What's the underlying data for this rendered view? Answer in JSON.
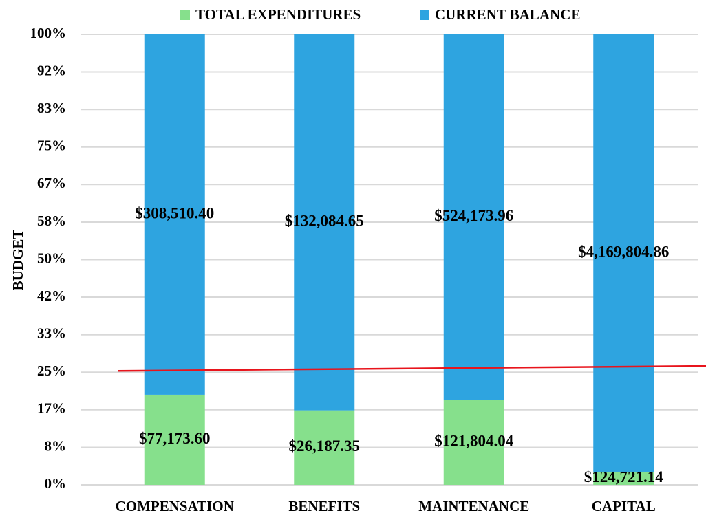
{
  "chart_data": {
    "type": "bar",
    "stacking": "percent",
    "y_label": "BUDGET",
    "categories": [
      "COMPENSATION",
      "BENEFITS",
      "MAINTENANCE",
      "CAPITAL"
    ],
    "series": [
      {
        "name": "TOTAL EXPENDITURES",
        "color": "#86e08c",
        "values": [
          77173.6,
          26187.35,
          121804.04,
          124721.14
        ],
        "value_labels": [
          "$77,173.60",
          "$26,187.35",
          "$121,804.04",
          "$124,721.14"
        ]
      },
      {
        "name": "CURRENT BALANCE",
        "color": "#2ea4e0",
        "values": [
          308510.4,
          132084.65,
          524173.96,
          4169804.86
        ],
        "value_labels": [
          "$308,510.40",
          "$132,084.65",
          "$524,173.96",
          "$4,169,804.86"
        ]
      }
    ],
    "ylim": [
      0,
      100
    ],
    "yticks": [
      {
        "value": 0,
        "label": "0%"
      },
      {
        "value": 8.33,
        "label": "8%"
      },
      {
        "value": 16.67,
        "label": "17%"
      },
      {
        "value": 25,
        "label": "25%"
      },
      {
        "value": 33.33,
        "label": "33%"
      },
      {
        "value": 41.67,
        "label": "42%"
      },
      {
        "value": 50,
        "label": "50%"
      },
      {
        "value": 58.33,
        "label": "58%"
      },
      {
        "value": 66.67,
        "label": "67%"
      },
      {
        "value": 75,
        "label": "75%"
      },
      {
        "value": 83.33,
        "label": "83%"
      },
      {
        "value": 91.67,
        "label": "92%"
      },
      {
        "value": 100,
        "label": "100%"
      }
    ],
    "grid": true,
    "legend": "top",
    "reference_line": {
      "color": "#e8141c",
      "values": [
        25.3,
        26.4
      ]
    }
  }
}
